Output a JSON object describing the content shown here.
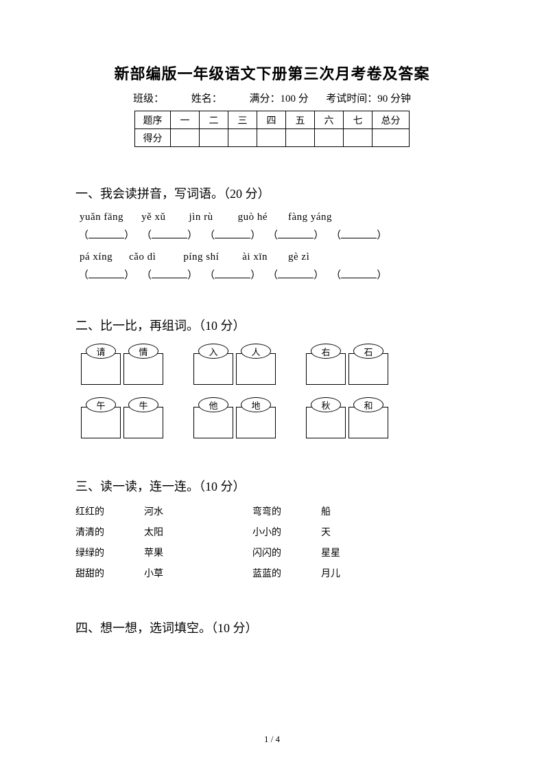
{
  "title": "新部编版一年级语文下册第三次月考卷及答案",
  "info": {
    "class_label": "班级：",
    "name_label": "姓名：",
    "full_score_label": "满分：",
    "full_score_value": "100 分",
    "time_label": "考试时间：",
    "time_value": "90 分钟"
  },
  "score_table": {
    "header_label": "题序",
    "columns": [
      "一",
      "二",
      "三",
      "四",
      "五",
      "六",
      "七",
      "总分"
    ],
    "score_label": "得分",
    "label_col_width": 52,
    "num_col_width": 42,
    "total_col_width": 54
  },
  "section1": {
    "title": "一、我会读拼音，写词语。（20 分）",
    "rows": [
      {
        "pinyin": [
          "yuǎn fāng",
          "yě xǔ",
          "jìn rù",
          "guò hé",
          "fàng yáng"
        ],
        "gaps": [
          26,
          34,
          36,
          30,
          30
        ]
      },
      {
        "pinyin": [
          "pá xíng",
          "cǎo dì",
          "píng shí",
          "ài   xīn",
          "gè zì"
        ],
        "gaps": [
          24,
          40,
          34,
          30,
          32
        ]
      }
    ],
    "blank_width": 52,
    "blank_gap": 10
  },
  "section2": {
    "title": "二、比一比，再组词。（10 分）",
    "row1": [
      [
        "请",
        "情"
      ],
      [
        "入",
        "人"
      ],
      [
        "右",
        "石"
      ]
    ],
    "row2": [
      [
        "午",
        "牛"
      ],
      [
        "他",
        "地"
      ],
      [
        "秋",
        "和"
      ]
    ]
  },
  "section3": {
    "title": "三、读一读，连一连。（10 分）",
    "left": {
      "a": [
        "红红的",
        "清清的",
        "绿绿的",
        "甜甜的"
      ],
      "b": [
        "河水",
        "太阳",
        "苹果",
        "小草"
      ]
    },
    "right": {
      "a": [
        "弯弯的",
        "小小的",
        "闪闪的",
        "蓝蓝的"
      ],
      "b": [
        "船",
        "天",
        "星星",
        "月儿"
      ]
    }
  },
  "section4": {
    "title": "四、想一想，选词填空。（10 分）"
  },
  "page_number": "1 / 4",
  "colors": {
    "text": "#000000",
    "background": "#ffffff",
    "border": "#000000"
  }
}
